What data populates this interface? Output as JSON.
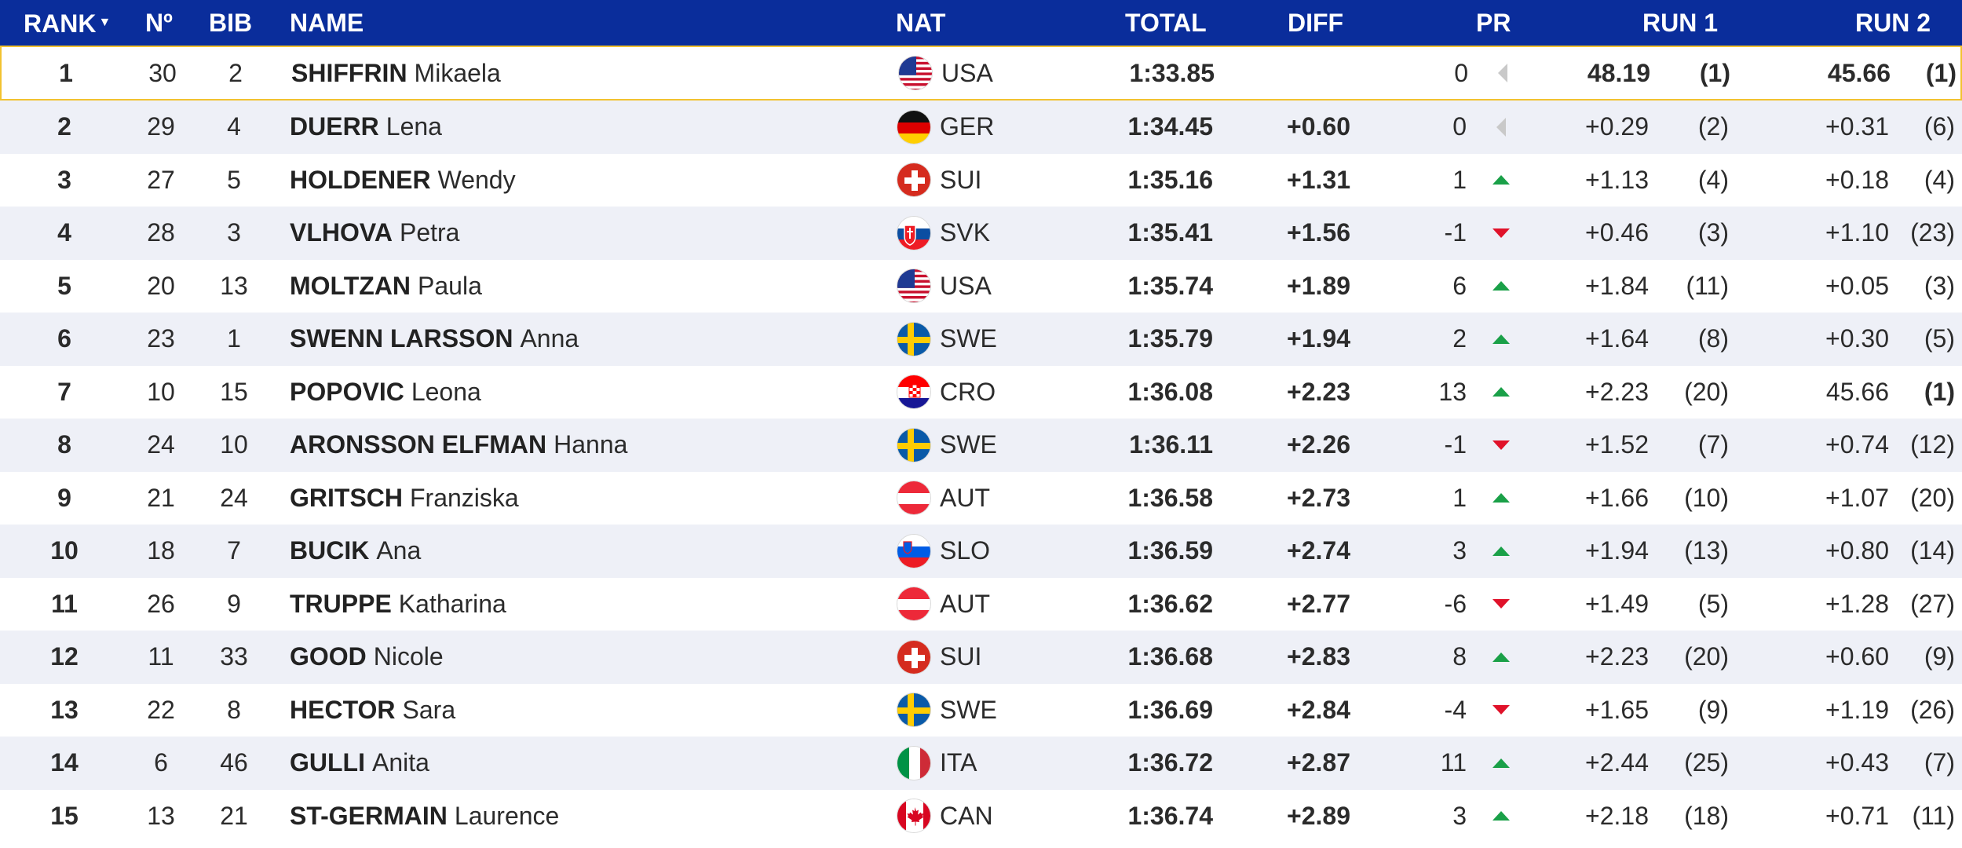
{
  "header": {
    "rank": "RANK",
    "rank_sort": "▼",
    "no": "Nº",
    "bib": "BIB",
    "name": "NAME",
    "nat": "NAT",
    "total": "TOTAL",
    "diff": "DIFF",
    "pr": "PR",
    "run1": "RUN 1",
    "run2": "RUN 2"
  },
  "colors": {
    "header_bg": "#0a2d9b",
    "highlight_border": "#f2c230",
    "up": "#1aa048",
    "down": "#e0122a",
    "same": "#c9c9c9"
  },
  "rows": [
    {
      "rank": "1",
      "no": "30",
      "bib": "2",
      "surname": "SHIFFRIN",
      "firstname": "Mikaela",
      "flag": "usa-flag-icon",
      "nat": "USA",
      "total": "1:33.85",
      "diff": "",
      "pr": "0",
      "trend": "same",
      "run1": "48.19",
      "run1_rank": "(1)",
      "run2": "45.66",
      "run2_rank": "(1)"
    },
    {
      "rank": "2",
      "no": "29",
      "bib": "4",
      "surname": "DUERR",
      "firstname": "Lena",
      "flag": "ger-flag-icon",
      "nat": "GER",
      "total": "1:34.45",
      "diff": "+0.60",
      "pr": "0",
      "trend": "same",
      "run1": "+0.29",
      "run1_rank": "(2)",
      "run2": "+0.31",
      "run2_rank": "(6)"
    },
    {
      "rank": "3",
      "no": "27",
      "bib": "5",
      "surname": "HOLDENER",
      "firstname": "Wendy",
      "flag": "sui-flag-icon",
      "nat": "SUI",
      "total": "1:35.16",
      "diff": "+1.31",
      "pr": "1",
      "trend": "up",
      "run1": "+1.13",
      "run1_rank": "(4)",
      "run2": "+0.18",
      "run2_rank": "(4)"
    },
    {
      "rank": "4",
      "no": "28",
      "bib": "3",
      "surname": "VLHOVA",
      "firstname": "Petra",
      "flag": "svk-flag-icon",
      "nat": "SVK",
      "total": "1:35.41",
      "diff": "+1.56",
      "pr": "-1",
      "trend": "down",
      "run1": "+0.46",
      "run1_rank": "(3)",
      "run2": "+1.10",
      "run2_rank": "(23)"
    },
    {
      "rank": "5",
      "no": "20",
      "bib": "13",
      "surname": "MOLTZAN",
      "firstname": "Paula",
      "flag": "usa-flag-icon",
      "nat": "USA",
      "total": "1:35.74",
      "diff": "+1.89",
      "pr": "6",
      "trend": "up",
      "run1": "+1.84",
      "run1_rank": "(11)",
      "run2": "+0.05",
      "run2_rank": "(3)"
    },
    {
      "rank": "6",
      "no": "23",
      "bib": "1",
      "surname": "SWENN LARSSON",
      "firstname": "Anna",
      "flag": "swe-flag-icon",
      "nat": "SWE",
      "total": "1:35.79",
      "diff": "+1.94",
      "pr": "2",
      "trend": "up",
      "run1": "+1.64",
      "run1_rank": "(8)",
      "run2": "+0.30",
      "run2_rank": "(5)"
    },
    {
      "rank": "7",
      "no": "10",
      "bib": "15",
      "surname": "POPOVIC",
      "firstname": "Leona",
      "flag": "cro-flag-icon",
      "nat": "CRO",
      "total": "1:36.08",
      "diff": "+2.23",
      "pr": "13",
      "trend": "up",
      "run1": "+2.23",
      "run1_rank": "(20)",
      "run2": "45.66",
      "run2_rank": "(1)"
    },
    {
      "rank": "8",
      "no": "24",
      "bib": "10",
      "surname": "ARONSSON ELFMAN",
      "firstname": "Hanna",
      "flag": "swe-flag-icon",
      "nat": "SWE",
      "total": "1:36.11",
      "diff": "+2.26",
      "pr": "-1",
      "trend": "down",
      "run1": "+1.52",
      "run1_rank": "(7)",
      "run2": "+0.74",
      "run2_rank": "(12)"
    },
    {
      "rank": "9",
      "no": "21",
      "bib": "24",
      "surname": "GRITSCH",
      "firstname": "Franziska",
      "flag": "aut-flag-icon",
      "nat": "AUT",
      "total": "1:36.58",
      "diff": "+2.73",
      "pr": "1",
      "trend": "up",
      "run1": "+1.66",
      "run1_rank": "(10)",
      "run2": "+1.07",
      "run2_rank": "(20)"
    },
    {
      "rank": "10",
      "no": "18",
      "bib": "7",
      "surname": "BUCIK",
      "firstname": "Ana",
      "flag": "slo-flag-icon",
      "nat": "SLO",
      "total": "1:36.59",
      "diff": "+2.74",
      "pr": "3",
      "trend": "up",
      "run1": "+1.94",
      "run1_rank": "(13)",
      "run2": "+0.80",
      "run2_rank": "(14)"
    },
    {
      "rank": "11",
      "no": "26",
      "bib": "9",
      "surname": "TRUPPE",
      "firstname": "Katharina",
      "flag": "aut-flag-icon",
      "nat": "AUT",
      "total": "1:36.62",
      "diff": "+2.77",
      "pr": "-6",
      "trend": "down",
      "run1": "+1.49",
      "run1_rank": "(5)",
      "run2": "+1.28",
      "run2_rank": "(27)"
    },
    {
      "rank": "12",
      "no": "11",
      "bib": "33",
      "surname": "GOOD",
      "firstname": "Nicole",
      "flag": "sui-flag-icon",
      "nat": "SUI",
      "total": "1:36.68",
      "diff": "+2.83",
      "pr": "8",
      "trend": "up",
      "run1": "+2.23",
      "run1_rank": "(20)",
      "run2": "+0.60",
      "run2_rank": "(9)"
    },
    {
      "rank": "13",
      "no": "22",
      "bib": "8",
      "surname": "HECTOR",
      "firstname": "Sara",
      "flag": "swe-flag-icon",
      "nat": "SWE",
      "total": "1:36.69",
      "diff": "+2.84",
      "pr": "-4",
      "trend": "down",
      "run1": "+1.65",
      "run1_rank": "(9)",
      "run2": "+1.19",
      "run2_rank": "(26)"
    },
    {
      "rank": "14",
      "no": "6",
      "bib": "46",
      "surname": "GULLI",
      "firstname": "Anita",
      "flag": "ita-flag-icon",
      "nat": "ITA",
      "total": "1:36.72",
      "diff": "+2.87",
      "pr": "11",
      "trend": "up",
      "run1": "+2.44",
      "run1_rank": "(25)",
      "run2": "+0.43",
      "run2_rank": "(7)"
    },
    {
      "rank": "15",
      "no": "13",
      "bib": "21",
      "surname": "ST-GERMAIN",
      "firstname": "Laurence",
      "flag": "can-flag-icon",
      "nat": "CAN",
      "total": "1:36.74",
      "diff": "+2.89",
      "pr": "3",
      "trend": "up",
      "run1": "+2.18",
      "run1_rank": "(18)",
      "run2": "+0.71",
      "run2_rank": "(11)"
    }
  ]
}
